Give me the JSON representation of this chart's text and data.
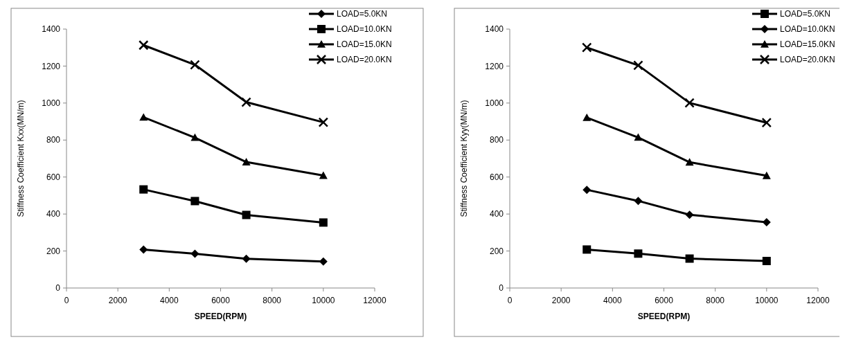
{
  "chart_data": [
    {
      "type": "line",
      "xlabel": "SPEED(RPM)",
      "ylabel": "Stiffness Coefficient Kxx(MN/m)",
      "x": [
        3000,
        5000,
        7000,
        10000
      ],
      "xlim": [
        0,
        12000
      ],
      "xticks": [
        0,
        2000,
        4000,
        6000,
        8000,
        10000,
        12000
      ],
      "ylim": [
        0,
        1400
      ],
      "yticks": [
        0,
        200,
        400,
        600,
        800,
        1000,
        1200,
        1400
      ],
      "grid": false,
      "legend": "top right",
      "series": [
        {
          "name": "LOAD=5.0KN",
          "color": "#000000",
          "marker": "diamond",
          "values": [
            208,
            185,
            158,
            143
          ]
        },
        {
          "name": "LOAD=10.0KN",
          "color": "#000000",
          "marker": "square",
          "values": [
            533,
            470,
            395,
            354
          ]
        },
        {
          "name": "LOAD=15.0KN",
          "color": "#000000",
          "marker": "triangle",
          "values": [
            923,
            813,
            681,
            608
          ]
        },
        {
          "name": "LOAD=20.0KN",
          "color": "#000000",
          "marker": "cross",
          "values": [
            1313,
            1207,
            1005,
            896
          ]
        }
      ]
    },
    {
      "type": "line",
      "xlabel": "SPEED(RPM)",
      "ylabel": "Stiffness Coefficient Kyy(MN/m)",
      "x": [
        3000,
        5000,
        7000,
        10000
      ],
      "xlim": [
        0,
        12000
      ],
      "xticks": [
        0,
        2000,
        4000,
        6000,
        8000,
        10000,
        12000
      ],
      "ylim": [
        0,
        1400
      ],
      "yticks": [
        0,
        200,
        400,
        600,
        800,
        1000,
        1200,
        1400
      ],
      "grid": false,
      "legend": "top right",
      "series": [
        {
          "name": "LOAD=5.0KN",
          "color": "#000000",
          "marker": "square",
          "values": [
            208,
            186,
            159,
            146
          ]
        },
        {
          "name": "LOAD=10.0KN",
          "color": "#000000",
          "marker": "diamond",
          "values": [
            531,
            471,
            396,
            356
          ]
        },
        {
          "name": "LOAD=15.0KN",
          "color": "#000000",
          "marker": "triangle",
          "values": [
            921,
            814,
            680,
            607
          ]
        },
        {
          "name": "LOAD=20.0KN",
          "color": "#000000",
          "marker": "cross",
          "values": [
            1300,
            1204,
            1001,
            894
          ]
        }
      ]
    }
  ]
}
